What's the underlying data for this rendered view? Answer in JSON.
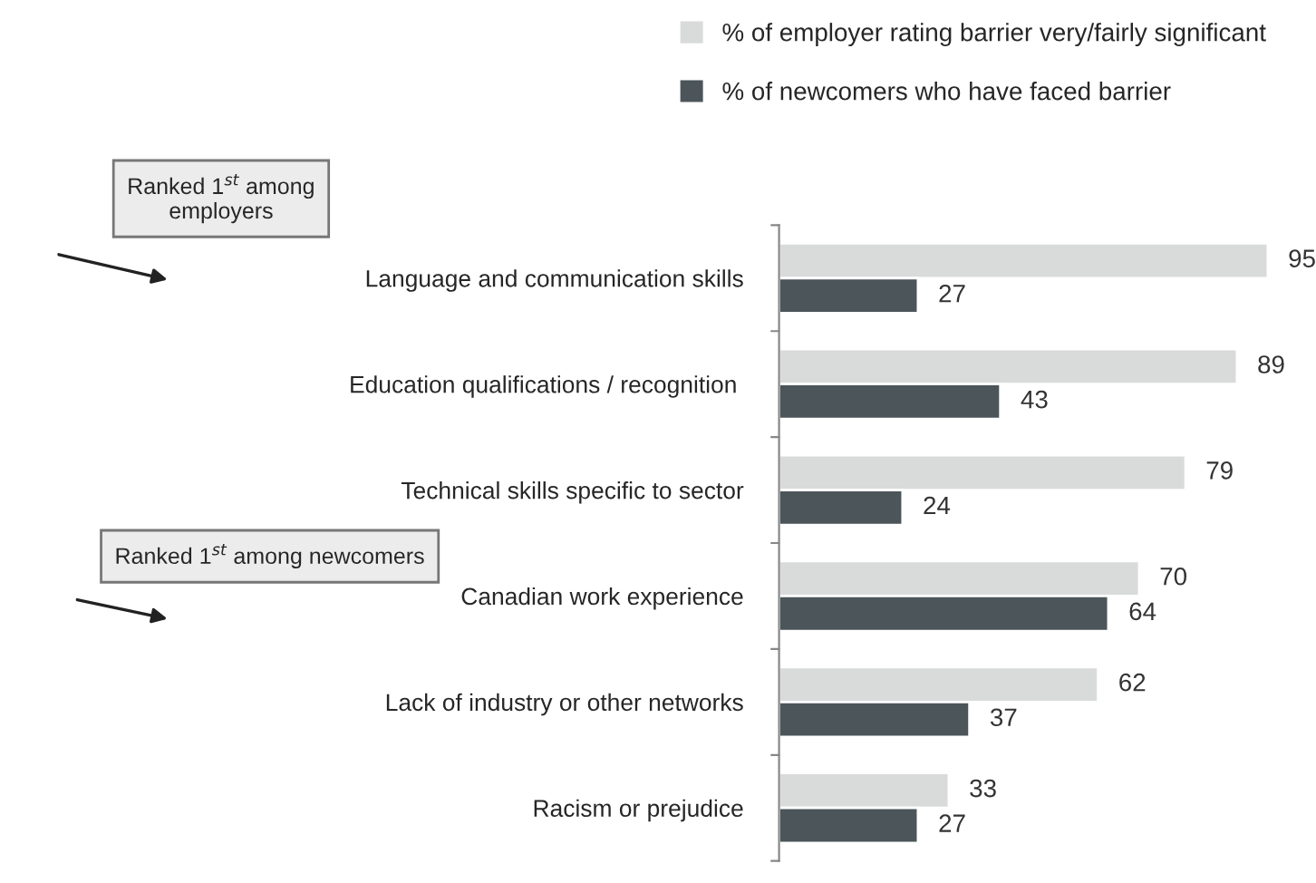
{
  "chart_data": {
    "type": "bar",
    "orientation": "horizontal",
    "categories": [
      "Language and communication skills",
      "Education qualifications / recognition ",
      "Technical skills specific to sector",
      "Canadian work experience",
      "Lack of industry or other networks",
      "Racism or prejudice"
    ],
    "series": [
      {
        "name": "% of employer rating barrier very/fairly significant",
        "color": "#d9dbdb",
        "values": [
          95,
          89,
          79,
          70,
          62,
          33
        ]
      },
      {
        "name": "% of newcomers who have faced barrier",
        "color": "#4b555a",
        "values": [
          27,
          43,
          24,
          64,
          37,
          27
        ]
      }
    ],
    "tick_labels": "y",
    "data_labels": true,
    "legend": "top",
    "grid": false,
    "annotations": [
      "Ranked 1$^{st}$ among\nemployers",
      "Ranked 1$^{st}$ among newcomers"
    ]
  }
}
